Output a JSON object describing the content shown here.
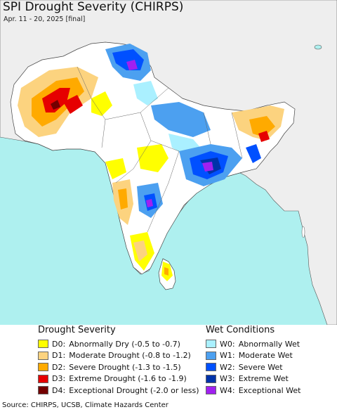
{
  "title": "SPI Drought Severity (CHIRPS)",
  "subtitle": "Apr. 11 - 20, 2025 [final]",
  "legend": {
    "drought": {
      "heading": "Drought Severity",
      "items": [
        {
          "code": "D0:",
          "label": "Abnormally Dry (-0.5 to -0.7)",
          "color": "#ffff00"
        },
        {
          "code": "D1:",
          "label": "Moderate Drought (-0.8 to -1.2)",
          "color": "#fcd37f"
        },
        {
          "code": "D2:",
          "label": "Severe Drought (-1.3 to -1.5)",
          "color": "#ffaa00"
        },
        {
          "code": "D3:",
          "label": "Extreme Drought (-1.6 to -1.9)",
          "color": "#e60000"
        },
        {
          "code": "D4:",
          "label": "Exceptional Drought (-2.0 or less)",
          "color": "#730000"
        }
      ]
    },
    "wet": {
      "heading": "Wet Conditions",
      "items": [
        {
          "code": "W0:",
          "label": "Abnormally Wet",
          "color": "#aaf0ff"
        },
        {
          "code": "W1:",
          "label": "Moderate Wet",
          "color": "#4ca0f0"
        },
        {
          "code": "W2:",
          "label": "Severe Wet",
          "color": "#0050ff"
        },
        {
          "code": "W3:",
          "label": "Extreme Wet",
          "color": "#0033aa"
        },
        {
          "code": "W4:",
          "label": "Exceptional Wet",
          "color": "#a020f0"
        }
      ]
    }
  },
  "source": "Source: CHIRPS, UCSB, Climate Hazards Center",
  "colors": {
    "sea": "#aef0ef",
    "land_outside": "#eeeeee",
    "land_region": "#ffffff",
    "border": "#333333"
  }
}
